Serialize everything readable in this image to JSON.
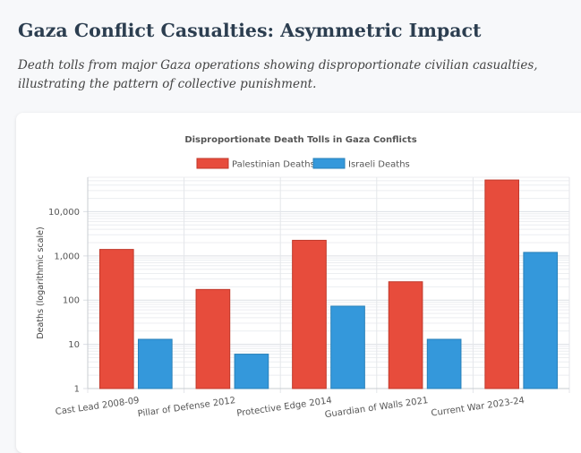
{
  "page": {
    "title": "Gaza Conflict Casualties: Asymmetric Impact",
    "subtitle": "Death tolls from major Gaza operations showing disproportionate civilian casualties, illustrating the pattern of collective punishment."
  },
  "chart_data": {
    "type": "bar",
    "title": "Disproportionate Death Tolls in Gaza Conflicts",
    "xlabel": "",
    "ylabel": "Deaths (logarithmic scale)",
    "yscale": "log",
    "ylim": [
      1,
      60000
    ],
    "ytick_values": [
      1,
      10,
      100,
      1000,
      10000
    ],
    "ytick_labels": [
      "1",
      "10",
      "100",
      "1,000",
      "10,000"
    ],
    "legend_position": "top-center",
    "categories": [
      "Cast Lead 2008-09",
      "Pillar of Defense 2012",
      "Protective Edge 2014",
      "Guardian of Walls 2021",
      "Current War 2023-24"
    ],
    "series": [
      {
        "name": "Palestinian Deaths",
        "color": "#e74c3c",
        "border": "#c0392b",
        "values": [
          1400,
          174,
          2251,
          260,
          52000
        ]
      },
      {
        "name": "Israeli Deaths",
        "color": "#3498db",
        "border": "#2980b9",
        "values": [
          13,
          6,
          73,
          13,
          1200
        ]
      }
    ]
  }
}
